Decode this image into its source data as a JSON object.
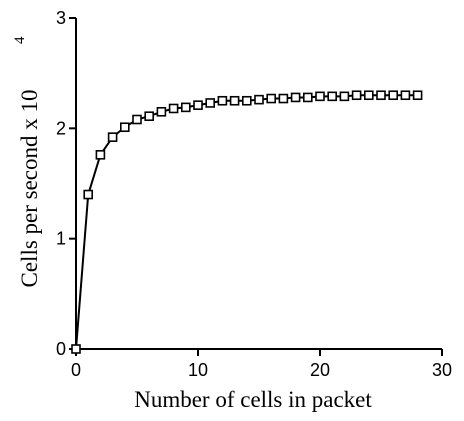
{
  "chart_data": {
    "type": "line",
    "title": "",
    "xlabel": "Number of cells in packet",
    "ylabel": "Cells per second x 10",
    "ylabel_exponent": "4",
    "xlim": [
      0,
      30
    ],
    "ylim": [
      0,
      3
    ],
    "x_ticks": [
      0,
      10,
      20,
      30
    ],
    "y_ticks": [
      0,
      1,
      2,
      3
    ],
    "x_tick_labels": [
      "0",
      "10",
      "20",
      "30"
    ],
    "y_tick_labels": [
      "0",
      "1",
      "2",
      "3"
    ],
    "grid": false,
    "legend": "none",
    "marker": "open-square",
    "line_color": "#000000",
    "series": [
      {
        "x": [
          0,
          1,
          2,
          3,
          4,
          5,
          6,
          7,
          8,
          9,
          10,
          11,
          12,
          13,
          14,
          15,
          16,
          17,
          18,
          19,
          20,
          21,
          22,
          23,
          24,
          25,
          26,
          27,
          28
        ],
        "values": [
          0.0,
          1.4,
          1.76,
          1.92,
          2.01,
          2.08,
          2.11,
          2.15,
          2.18,
          2.19,
          2.21,
          2.23,
          2.25,
          2.25,
          2.25,
          2.26,
          2.27,
          2.27,
          2.28,
          2.28,
          2.29,
          2.29,
          2.29,
          2.3,
          2.3,
          2.3,
          2.3,
          2.3,
          2.3
        ]
      }
    ]
  }
}
